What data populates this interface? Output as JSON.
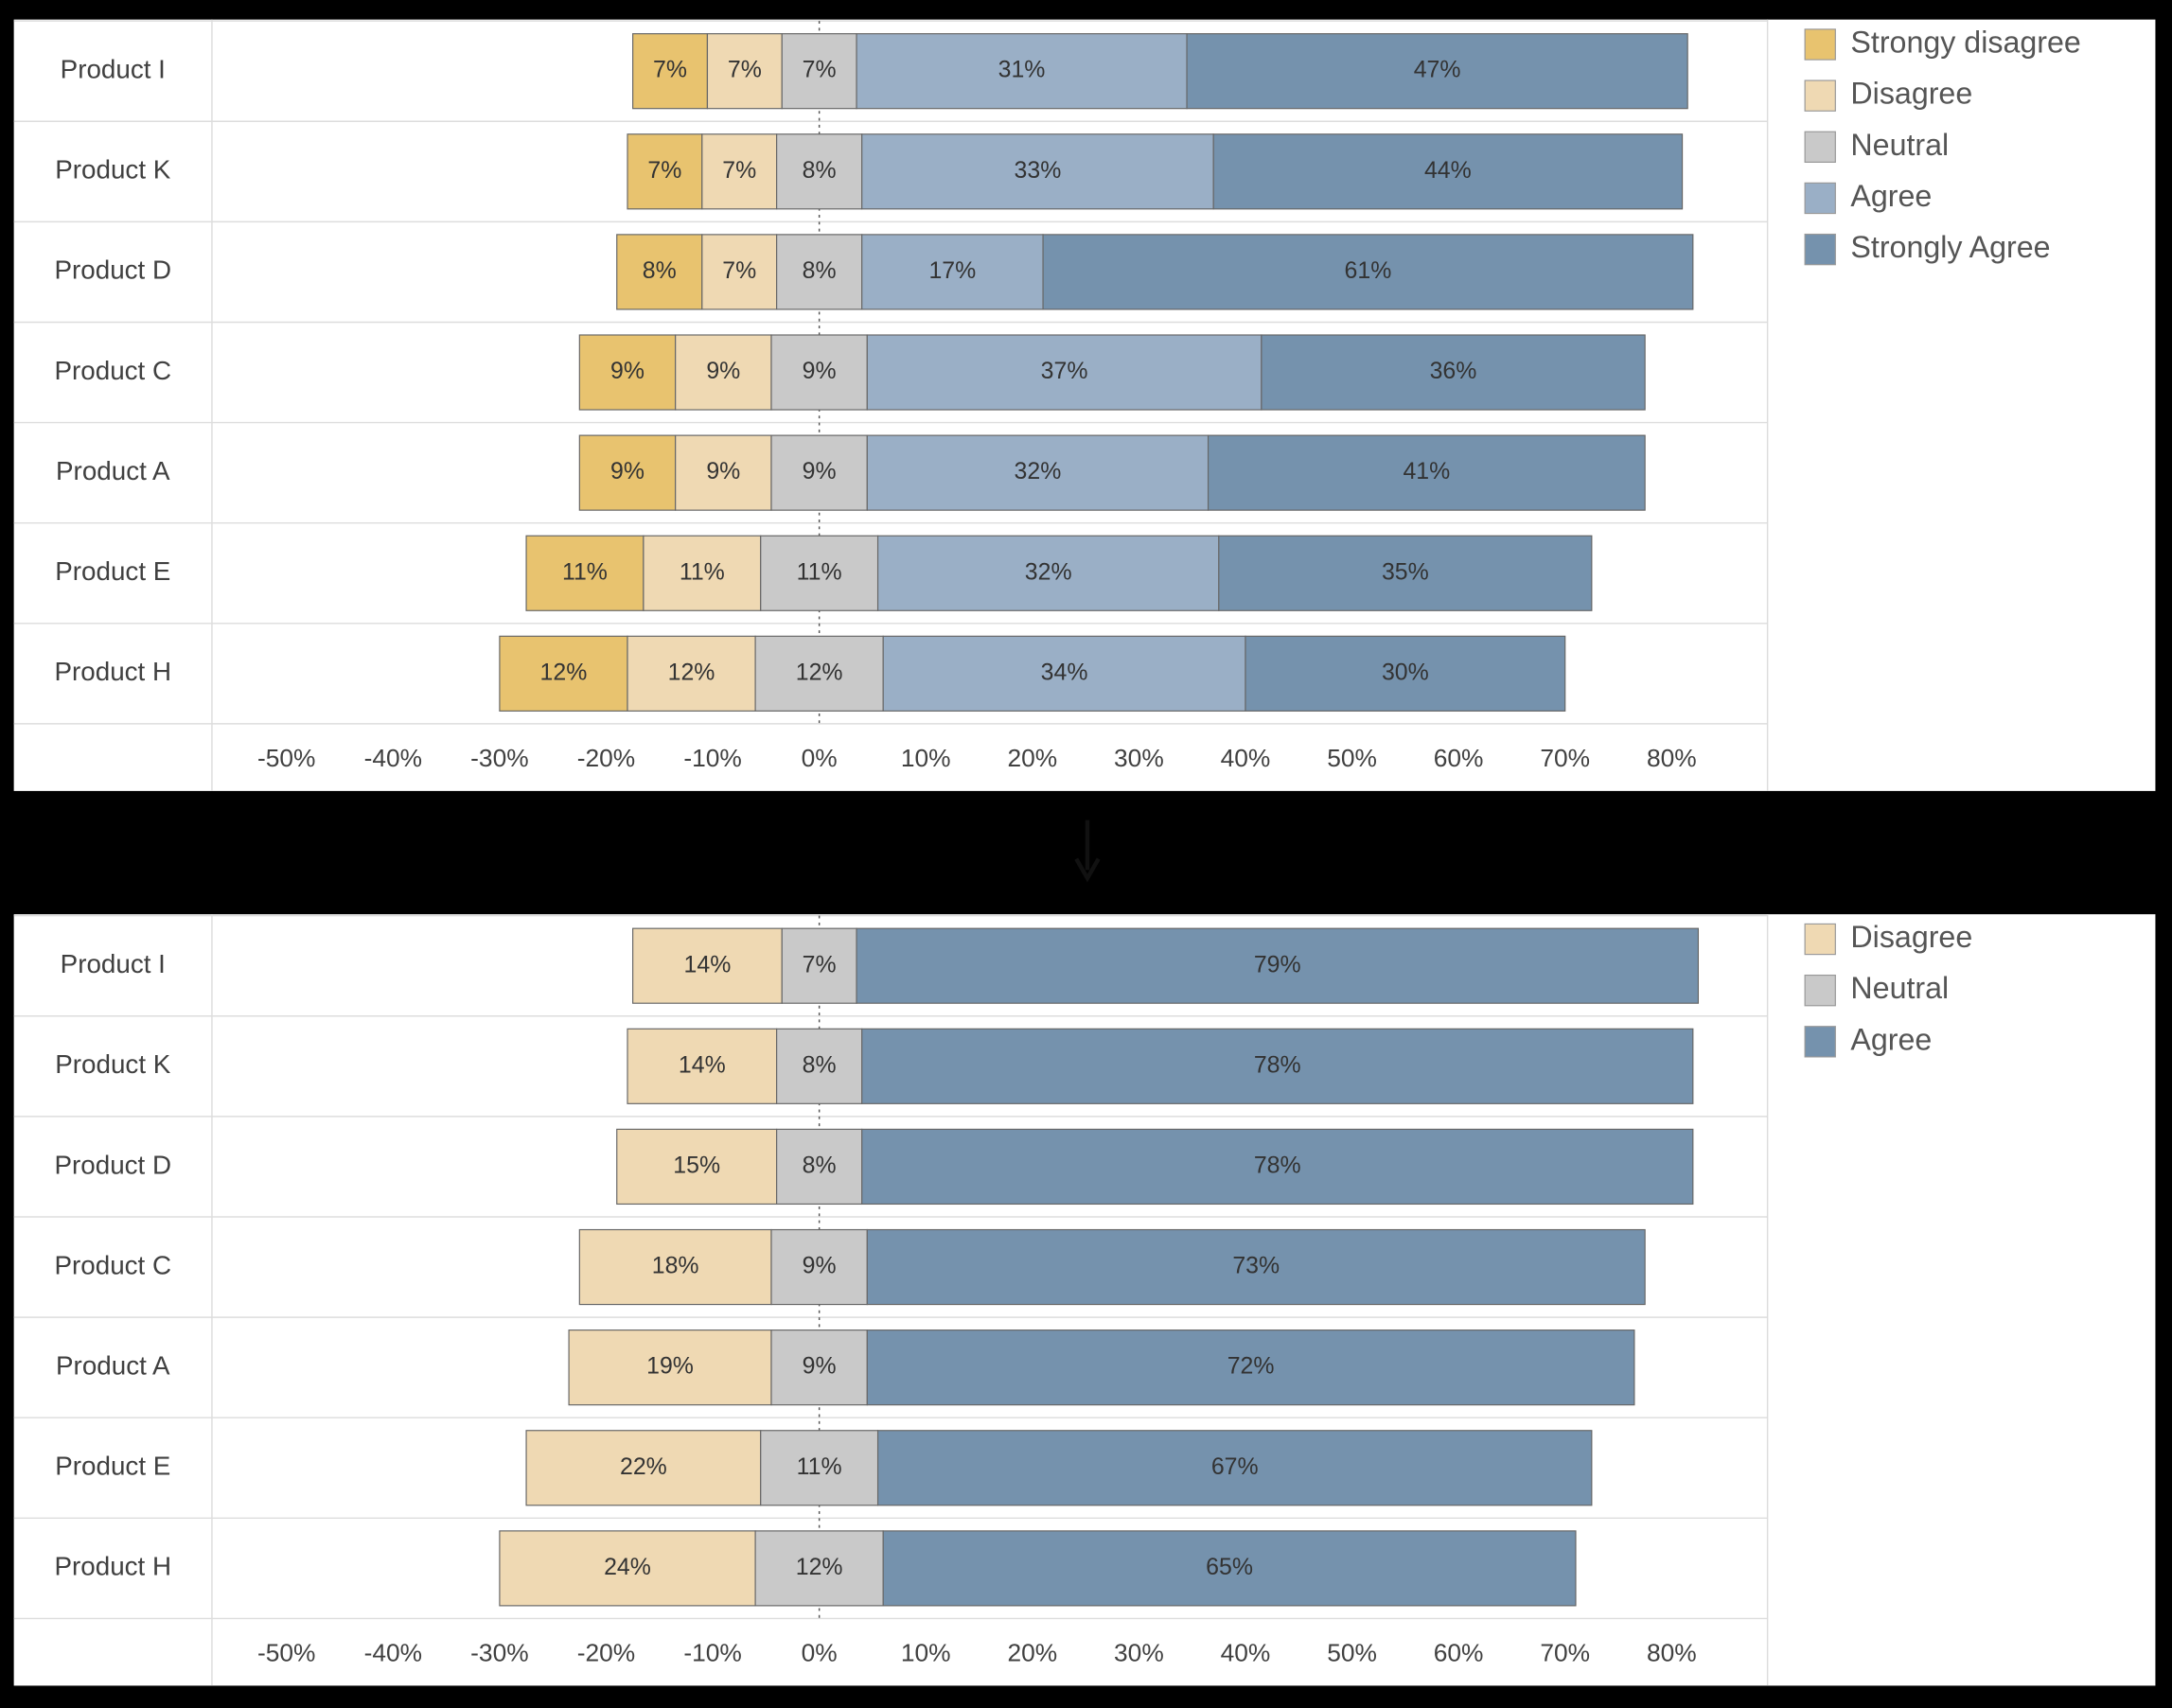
{
  "chart_data": [
    {
      "type": "bar",
      "diverging": true,
      "categories": [
        "Product I",
        "Product K",
        "Product D",
        "Product C",
        "Product A",
        "Product E",
        "Product H"
      ],
      "series": [
        {
          "name": "Strongy disagree",
          "color": "#e8c36f",
          "values": [
            7,
            7,
            8,
            9,
            9,
            11,
            12
          ],
          "value_labels": [
            "7%",
            "7%",
            "8%",
            "9%",
            "9%",
            "11%",
            "12%"
          ]
        },
        {
          "name": "Disagree",
          "color": "#efd9b3",
          "values": [
            7,
            7,
            7,
            9,
            9,
            11,
            12
          ],
          "value_labels": [
            "7%",
            "7%",
            "7%",
            "9%",
            "9%",
            "11%",
            "12%"
          ]
        },
        {
          "name": "Neutral",
          "color": "#c9c9c9",
          "values": [
            7,
            8,
            8,
            9,
            9,
            11,
            12
          ],
          "value_labels": [
            "7%",
            "8%",
            "8%",
            "9%",
            "9%",
            "11%",
            "12%"
          ]
        },
        {
          "name": "Agree",
          "color": "#9aafc6",
          "values": [
            31,
            33,
            17,
            37,
            32,
            32,
            34
          ],
          "value_labels": [
            "31%",
            "33%",
            "17%",
            "37%",
            "32%",
            "32%",
            "34%"
          ]
        },
        {
          "name": "Strongly Agree",
          "color": "#7592ad",
          "values": [
            47,
            44,
            61,
            36,
            41,
            35,
            30
          ],
          "value_labels": [
            "47%",
            "44%",
            "61%",
            "36%",
            "41%",
            "35%",
            "30%"
          ]
        }
      ],
      "xlim": [
        -57,
        89
      ],
      "xticks": [
        {
          "value": -50,
          "label": "-50%"
        },
        {
          "value": -40,
          "label": "-40%"
        },
        {
          "value": -30,
          "label": "-30%"
        },
        {
          "value": -20,
          "label": "-20%"
        },
        {
          "value": -10,
          "label": "-10%"
        },
        {
          "value": 0,
          "label": "0%"
        },
        {
          "value": 10,
          "label": "10%"
        },
        {
          "value": 20,
          "label": "20%"
        },
        {
          "value": 30,
          "label": "30%"
        },
        {
          "value": 40,
          "label": "40%"
        },
        {
          "value": 50,
          "label": "50%"
        },
        {
          "value": 60,
          "label": "60%"
        },
        {
          "value": 70,
          "label": "70%"
        },
        {
          "value": 80,
          "label": "80%"
        }
      ],
      "legend": "right"
    },
    {
      "type": "bar",
      "diverging": true,
      "categories": [
        "Product I",
        "Product K",
        "Product D",
        "Product C",
        "Product A",
        "Product E",
        "Product H"
      ],
      "series": [
        {
          "name": "Disagree",
          "color": "#efd9b3",
          "values": [
            14,
            14,
            15,
            18,
            19,
            22,
            24
          ],
          "value_labels": [
            "14%",
            "14%",
            "15%",
            "18%",
            "19%",
            "22%",
            "24%"
          ]
        },
        {
          "name": "Neutral",
          "color": "#c9c9c9",
          "values": [
            7,
            8,
            8,
            9,
            9,
            11,
            12
          ],
          "value_labels": [
            "7%",
            "8%",
            "8%",
            "9%",
            "9%",
            "11%",
            "12%"
          ]
        },
        {
          "name": "Agree",
          "color": "#7592ad",
          "values": [
            79,
            78,
            78,
            73,
            72,
            67,
            65
          ],
          "value_labels": [
            "79%",
            "78%",
            "78%",
            "73%",
            "72%",
            "67%",
            "65%"
          ]
        }
      ],
      "xlim": [
        -57,
        89
      ],
      "xticks": [
        {
          "value": -50,
          "label": "-50%"
        },
        {
          "value": -40,
          "label": "-40%"
        },
        {
          "value": -30,
          "label": "-30%"
        },
        {
          "value": -20,
          "label": "-20%"
        },
        {
          "value": -10,
          "label": "-10%"
        },
        {
          "value": 0,
          "label": "0%"
        },
        {
          "value": 10,
          "label": "10%"
        },
        {
          "value": 20,
          "label": "20%"
        },
        {
          "value": 30,
          "label": "30%"
        },
        {
          "value": 40,
          "label": "40%"
        },
        {
          "value": 50,
          "label": "50%"
        },
        {
          "value": 60,
          "label": "60%"
        },
        {
          "value": 70,
          "label": "70%"
        },
        {
          "value": 80,
          "label": "80%"
        }
      ],
      "legend": "right"
    }
  ]
}
